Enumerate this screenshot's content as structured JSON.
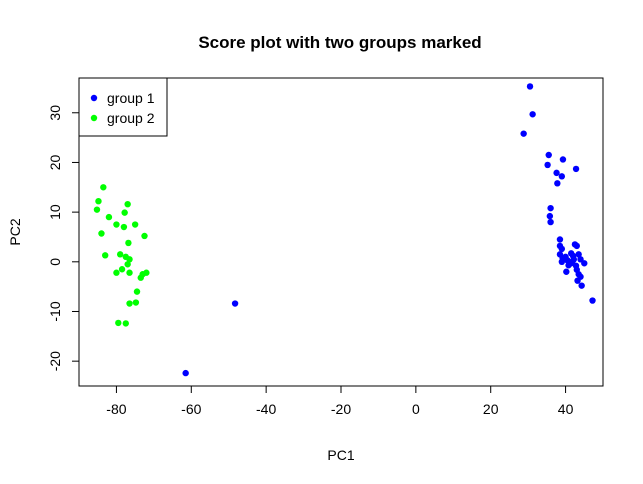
{
  "chart_data": {
    "type": "scatter",
    "title": "Score plot with two groups marked",
    "xlabel": "PC1",
    "ylabel": "PC2",
    "xlim": [
      -90,
      50
    ],
    "ylim": [
      -25,
      37
    ],
    "x_ticks": [
      -80,
      -60,
      -40,
      -20,
      0,
      20,
      40
    ],
    "y_ticks": [
      -20,
      -10,
      0,
      10,
      20,
      30
    ],
    "grid": false,
    "legend_position": "top-left",
    "series": [
      {
        "name": "group 1",
        "color": "#0000ff",
        "points": [
          [
            30.5,
            35.3
          ],
          [
            31.2,
            29.7
          ],
          [
            28.8,
            25.8
          ],
          [
            35.5,
            21.5
          ],
          [
            35.2,
            19.5
          ],
          [
            39.3,
            20.6
          ],
          [
            37.6,
            17.9
          ],
          [
            39.0,
            17.2
          ],
          [
            42.8,
            18.7
          ],
          [
            37.8,
            15.8
          ],
          [
            36.0,
            10.8
          ],
          [
            35.8,
            9.2
          ],
          [
            36.0,
            8.0
          ],
          [
            38.5,
            4.5
          ],
          [
            38.5,
            3.2
          ],
          [
            39.0,
            2.6
          ],
          [
            38.5,
            1.5
          ],
          [
            39.2,
            0.8
          ],
          [
            39.0,
            0.0
          ],
          [
            40.5,
            0.3
          ],
          [
            40.8,
            -0.7
          ],
          [
            40.2,
            -2.0
          ],
          [
            41.5,
            1.7
          ],
          [
            42.5,
            3.5
          ],
          [
            43.0,
            3.2
          ],
          [
            42.0,
            1.2
          ],
          [
            43.5,
            1.5
          ],
          [
            41.5,
            -0.3
          ],
          [
            42.8,
            -0.8
          ],
          [
            44.0,
            0.5
          ],
          [
            45.0,
            -0.3
          ],
          [
            43.0,
            -1.6
          ],
          [
            43.5,
            -2.5
          ],
          [
            44.0,
            -3.0
          ],
          [
            43.2,
            -3.8
          ],
          [
            44.3,
            -4.8
          ],
          [
            41.8,
            0.0
          ],
          [
            42.2,
            0.5
          ],
          [
            40.0,
            1.0
          ],
          [
            47.2,
            -7.8
          ],
          [
            -48.3,
            -8.4
          ],
          [
            -61.5,
            -22.4
          ]
        ]
      },
      {
        "name": "group 2",
        "color": "#00ff00",
        "points": [
          [
            -83.5,
            15.0
          ],
          [
            -84.8,
            12.2
          ],
          [
            -85.2,
            10.5
          ],
          [
            -82.0,
            9.0
          ],
          [
            -77.0,
            11.6
          ],
          [
            -77.8,
            9.9
          ],
          [
            -80.0,
            7.5
          ],
          [
            -78.0,
            7.0
          ],
          [
            -75.0,
            7.5
          ],
          [
            -72.5,
            5.2
          ],
          [
            -84.0,
            5.7
          ],
          [
            -76.8,
            3.8
          ],
          [
            -83.0,
            1.3
          ],
          [
            -79.0,
            1.5
          ],
          [
            -77.5,
            1.0
          ],
          [
            -76.5,
            0.5
          ],
          [
            -77.0,
            -0.5
          ],
          [
            -78.5,
            -1.5
          ],
          [
            -80.0,
            -2.2
          ],
          [
            -76.5,
            -2.2
          ],
          [
            -73.0,
            -2.5
          ],
          [
            -72.0,
            -2.2
          ],
          [
            -73.5,
            -3.2
          ],
          [
            -74.5,
            -6.0
          ],
          [
            -74.8,
            -8.2
          ],
          [
            -76.5,
            -8.4
          ],
          [
            -79.5,
            -12.3
          ],
          [
            -77.5,
            -12.4
          ]
        ]
      }
    ]
  }
}
